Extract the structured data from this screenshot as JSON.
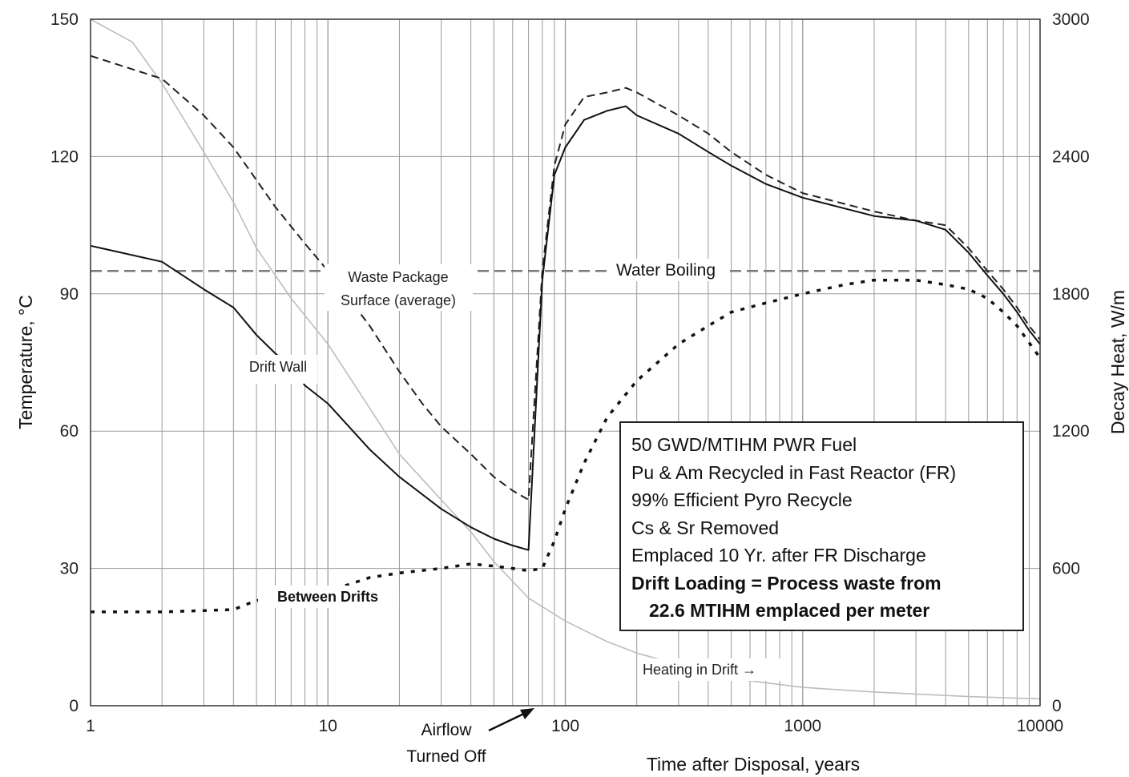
{
  "chart_data": {
    "type": "line",
    "title": "",
    "xlabel": "Time after Disposal, years",
    "ylabel": "Temperature, °C",
    "y2label": "Decay Heat, W/m",
    "xscale": "log",
    "xlim": [
      1,
      10000
    ],
    "ylim": [
      0,
      150
    ],
    "y2lim": [
      0,
      3000
    ],
    "grid": true,
    "x_ticks": [
      "1",
      "10",
      "100",
      "1000",
      "10000"
    ],
    "y_ticks": [
      "0",
      "30",
      "60",
      "90",
      "120",
      "150"
    ],
    "y2_ticks": [
      "0",
      "600",
      "1200",
      "1800",
      "2400",
      "3000"
    ],
    "series": [
      {
        "name": "Waste Package Surface (average)",
        "style": "dashed",
        "x": [
          1,
          2,
          3,
          4,
          6,
          8,
          10,
          15,
          20,
          25,
          30,
          40,
          50,
          60,
          70,
          80,
          90,
          100,
          120,
          150,
          180,
          200,
          300,
          400,
          500,
          700,
          1000,
          2000,
          3000,
          4000,
          5000,
          6000,
          7000,
          8000,
          9000,
          10000
        ],
        "y": [
          142,
          137,
          129,
          122,
          109,
          101,
          95,
          83,
          73,
          66,
          61,
          55,
          50,
          47,
          45,
          95,
          118,
          127,
          133,
          134,
          135,
          134,
          129,
          125,
          121,
          116,
          112,
          108,
          106,
          105,
          100,
          95,
          91,
          87,
          83,
          80
        ]
      },
      {
        "name": "Drift Wall",
        "style": "solid",
        "x": [
          1,
          2,
          3,
          4,
          5,
          6,
          7,
          8,
          10,
          15,
          20,
          30,
          40,
          50,
          60,
          70,
          80,
          90,
          100,
          120,
          150,
          180,
          200,
          300,
          400,
          500,
          700,
          1000,
          2000,
          3000,
          4000,
          5000,
          6000,
          7000,
          8000,
          9000,
          10000
        ],
        "y": [
          100.5,
          97,
          91,
          87,
          81,
          77,
          74,
          70,
          66,
          56,
          50,
          43,
          39,
          36.5,
          35,
          34,
          93,
          116,
          122,
          128,
          130,
          131,
          129,
          125,
          121,
          118,
          114,
          111,
          107,
          106,
          104,
          99,
          94,
          90,
          86,
          82,
          79
        ]
      },
      {
        "name": "Between Drifts",
        "style": "dotted",
        "x": [
          1,
          2,
          3,
          4,
          5,
          7,
          10,
          15,
          20,
          30,
          40,
          50,
          60,
          70,
          80,
          90,
          100,
          120,
          150,
          200,
          300,
          400,
          500,
          700,
          1000,
          1500,
          2000,
          3000,
          4000,
          5000,
          6000,
          7000,
          8000,
          10000
        ],
        "y": [
          20.5,
          20.5,
          20.8,
          21,
          23,
          24,
          25,
          28,
          29,
          30,
          31,
          30.5,
          30,
          29.5,
          30,
          36,
          43,
          53,
          63,
          71,
          79,
          83,
          86,
          88,
          90,
          92,
          93,
          93,
          92,
          91,
          89,
          86,
          83,
          76
        ]
      },
      {
        "name": "Heating in Drift",
        "style": "solid-light",
        "axis": "y2",
        "x": [
          1,
          1.5,
          2,
          3,
          4,
          5,
          7,
          10,
          15,
          20,
          30,
          40,
          50,
          70,
          100,
          150,
          200,
          300,
          500,
          700,
          1000,
          2000,
          5000,
          10000
        ],
        "y": [
          3000,
          2900,
          2720,
          2420,
          2200,
          2000,
          1780,
          1580,
          1300,
          1100,
          900,
          760,
          630,
          470,
          370,
          280,
          230,
          180,
          120,
          100,
          80,
          60,
          40,
          30
        ]
      }
    ],
    "reference_line": {
      "label": "Water Boiling",
      "y": 95
    },
    "annotations": {
      "waste_package_line1": "Waste Package",
      "waste_package_line2": "Surface (average)",
      "water_boiling": "Water Boiling",
      "drift_wall": "Drift Wall",
      "between_drifts": "Between Drifts",
      "heating_in_drift": "Heating in Drift →",
      "airflow_line1": "Airflow",
      "airflow_line2": "Turned Off"
    },
    "info_box": {
      "line1": "50 GWD/MTIHM  PWR Fuel",
      "line2": "Pu & Am Recycled in Fast Reactor (FR)",
      "line3": "99% Efficient Pyro Recycle",
      "line4": "Cs & Sr Removed",
      "line5": "Emplaced 10 Yr. after FR Discharge",
      "line6": "Drift Loading = Process waste from",
      "line7": "22.6 MTIHM emplaced per meter"
    }
  }
}
